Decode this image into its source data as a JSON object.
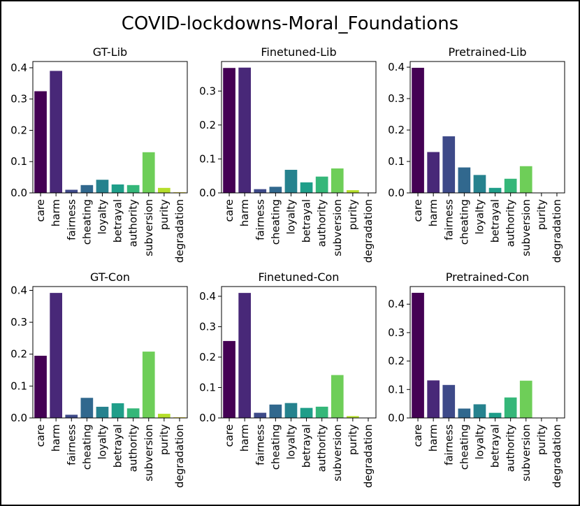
{
  "figure_title": "COVID-lockdowns-Moral_Foundations",
  "chart_data": [
    {
      "type": "bar",
      "title": "GT-Lib",
      "categories": [
        "care",
        "harm",
        "fairness",
        "cheating",
        "loyalty",
        "betrayal",
        "authority",
        "subversion",
        "purity",
        "degradation"
      ],
      "values": [
        0.325,
        0.39,
        0.01,
        0.025,
        0.042,
        0.027,
        0.025,
        0.13,
        0.016,
        0.002
      ],
      "ylim": [
        0,
        0.42
      ],
      "yticks": [
        0.0,
        0.1,
        0.2,
        0.3,
        0.4
      ],
      "ytick_labels": [
        "0.0",
        "0.1",
        "0.2",
        "0.3",
        "0.4"
      ],
      "xlabel": "",
      "ylabel": ""
    },
    {
      "type": "bar",
      "title": "Finetuned-Lib",
      "categories": [
        "care",
        "harm",
        "fairness",
        "cheating",
        "loyalty",
        "betrayal",
        "authority",
        "subversion",
        "purity",
        "degradation"
      ],
      "values": [
        0.368,
        0.369,
        0.011,
        0.018,
        0.068,
        0.031,
        0.048,
        0.072,
        0.008,
        0.001
      ],
      "ylim": [
        0,
        0.387
      ],
      "yticks": [
        0.0,
        0.1,
        0.2,
        0.3
      ],
      "ytick_labels": [
        "0.0",
        "0.1",
        "0.2",
        "0.3"
      ],
      "xlabel": "",
      "ylabel": ""
    },
    {
      "type": "bar",
      "title": "Pretrained-Lib",
      "categories": [
        "care",
        "harm",
        "fairness",
        "cheating",
        "loyalty",
        "betrayal",
        "authority",
        "subversion",
        "purity",
        "degradation"
      ],
      "values": [
        0.398,
        0.13,
        0.18,
        0.081,
        0.057,
        0.016,
        0.045,
        0.085,
        0.001,
        0.001
      ],
      "ylim": [
        0,
        0.418
      ],
      "yticks": [
        0.0,
        0.1,
        0.2,
        0.3,
        0.4
      ],
      "ytick_labels": [
        "0.0",
        "0.1",
        "0.2",
        "0.3",
        "0.4"
      ],
      "xlabel": "",
      "ylabel": ""
    },
    {
      "type": "bar",
      "title": "GT-Con",
      "categories": [
        "care",
        "harm",
        "fairness",
        "cheating",
        "loyalty",
        "betrayal",
        "authority",
        "subversion",
        "purity",
        "degradation"
      ],
      "values": [
        0.195,
        0.392,
        0.01,
        0.063,
        0.035,
        0.046,
        0.03,
        0.208,
        0.013,
        0.002
      ],
      "ylim": [
        0,
        0.412
      ],
      "yticks": [
        0.0,
        0.1,
        0.2,
        0.3,
        0.4
      ],
      "ytick_labels": [
        "0.0",
        "0.1",
        "0.2",
        "0.3",
        "0.4"
      ],
      "xlabel": "",
      "ylabel": ""
    },
    {
      "type": "bar",
      "title": "Finetuned-Con",
      "categories": [
        "care",
        "harm",
        "fairness",
        "cheating",
        "loyalty",
        "betrayal",
        "authority",
        "subversion",
        "purity",
        "degradation"
      ],
      "values": [
        0.253,
        0.411,
        0.017,
        0.044,
        0.049,
        0.033,
        0.037,
        0.141,
        0.006,
        0.001
      ],
      "ylim": [
        0,
        0.432
      ],
      "yticks": [
        0.0,
        0.1,
        0.2,
        0.3,
        0.4
      ],
      "ytick_labels": [
        "0.0",
        "0.1",
        "0.2",
        "0.3",
        "0.4"
      ],
      "xlabel": "",
      "ylabel": ""
    },
    {
      "type": "bar",
      "title": "Pretrained-Con",
      "categories": [
        "care",
        "harm",
        "fairness",
        "cheating",
        "loyalty",
        "betrayal",
        "authority",
        "subversion",
        "purity",
        "degradation"
      ],
      "values": [
        0.44,
        0.132,
        0.116,
        0.033,
        0.048,
        0.018,
        0.072,
        0.131,
        0.001,
        0.001
      ],
      "ylim": [
        0,
        0.462
      ],
      "yticks": [
        0.0,
        0.1,
        0.2,
        0.3,
        0.4
      ],
      "ytick_labels": [
        "0.0",
        "0.1",
        "0.2",
        "0.3",
        "0.4"
      ],
      "xlabel": "",
      "ylabel": ""
    }
  ],
  "colors": [
    "#440154",
    "#482878",
    "#3e4a89",
    "#31688e",
    "#26828e",
    "#1f9e89",
    "#35b779",
    "#6ece58",
    "#b5de2b",
    "#fde725"
  ]
}
